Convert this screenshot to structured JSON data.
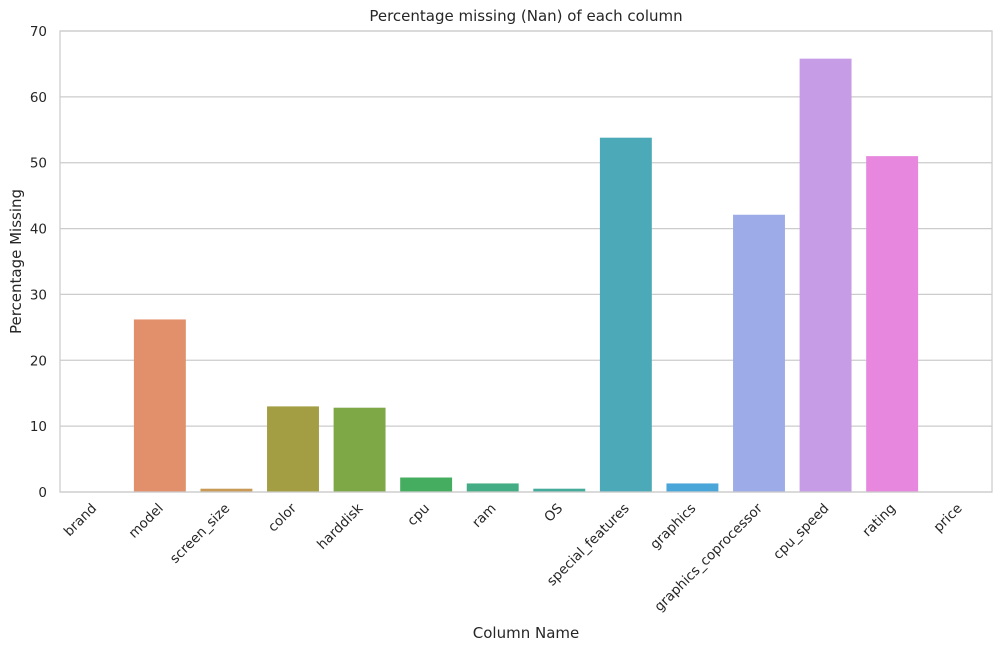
{
  "chart_data": {
    "type": "bar",
    "title": "Percentage missing (Nan) of each column",
    "xlabel": "Column Name",
    "ylabel": "Percentage Missing",
    "ylim": [
      0,
      70
    ],
    "yticks": [
      0,
      10,
      20,
      30,
      40,
      50,
      60,
      70
    ],
    "grid": true,
    "categories": [
      "brand",
      "model",
      "screen_size",
      "color",
      "harddisk",
      "cpu",
      "ram",
      "OS",
      "special_features",
      "graphics",
      "graphics_coprocessor",
      "cpu_speed",
      "rating",
      "price"
    ],
    "values": [
      0,
      26.2,
      0.5,
      13.0,
      12.8,
      2.2,
      1.3,
      0.5,
      53.8,
      1.3,
      42.1,
      65.8,
      51.0,
      0
    ],
    "colors": [
      "#e1877a",
      "#e2906b",
      "#c89a55",
      "#a39e43",
      "#7ea745",
      "#45ad5f",
      "#45ad85",
      "#45ab9a",
      "#4caab8",
      "#4aa6d8",
      "#9eabe9",
      "#c69ce7",
      "#e788de",
      "#ec87b2"
    ]
  }
}
